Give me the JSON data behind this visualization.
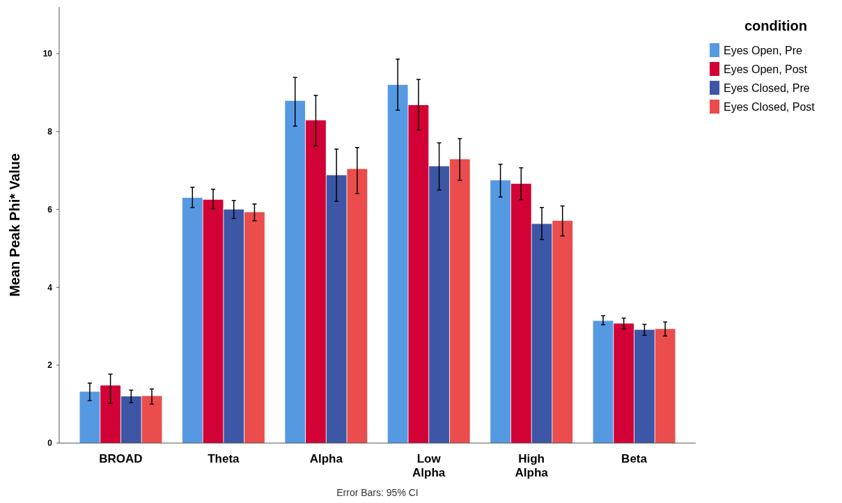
{
  "chart_data": {
    "type": "bar",
    "ylabel": "Mean Peak Phi* Value",
    "legend_title": "condition",
    "legend": "top right",
    "categories": [
      "BROAD",
      "Theta",
      "Alpha",
      "Low Alpha",
      "High Alpha",
      "Beta"
    ],
    "series": [
      {
        "name": "Eyes Open, Pre",
        "color": "#5699e3",
        "values": [
          1.32,
          6.3,
          8.79,
          9.2,
          6.75,
          3.14
        ],
        "errors": [
          [
            1.09,
            1.54
          ],
          [
            6.05,
            6.57
          ],
          [
            8.14,
            9.39
          ],
          [
            8.55,
            9.86
          ],
          [
            6.32,
            7.16
          ],
          [
            3.04,
            3.27
          ]
        ]
      },
      {
        "name": "Eyes Open, Post",
        "color": "#d20136",
        "values": [
          1.48,
          6.25,
          8.29,
          8.68,
          6.66,
          3.07
        ],
        "errors": [
          [
            1.02,
            1.77
          ],
          [
            6.02,
            6.52
          ],
          [
            7.63,
            8.93
          ],
          [
            8.04,
            9.34
          ],
          [
            6.25,
            7.07
          ],
          [
            2.93,
            3.21
          ]
        ]
      },
      {
        "name": "Eyes Closed, Pre",
        "color": "#3d56a6",
        "values": [
          1.2,
          6.0,
          6.88,
          7.11,
          5.63,
          2.91
        ],
        "errors": [
          [
            1.04,
            1.36
          ],
          [
            5.77,
            6.23
          ],
          [
            6.21,
            7.55
          ],
          [
            6.5,
            7.71
          ],
          [
            5.23,
            6.05
          ],
          [
            2.77,
            3.05
          ]
        ]
      },
      {
        "name": "Eyes Closed, Post",
        "color": "#eb4c4c",
        "values": [
          1.21,
          5.93,
          7.04,
          7.29,
          5.71,
          2.93
        ],
        "errors": [
          [
            1.0,
            1.39
          ],
          [
            5.71,
            6.14
          ],
          [
            6.41,
            7.59
          ],
          [
            6.75,
            7.82
          ],
          [
            5.32,
            6.09
          ],
          [
            2.75,
            3.11
          ]
        ]
      }
    ],
    "ylim": [
      0,
      11.2
    ],
    "yticks": [
      0,
      2,
      4,
      6,
      8,
      10
    ],
    "grid": false,
    "annotations": [
      "Error Bars: 95% CI"
    ]
  }
}
